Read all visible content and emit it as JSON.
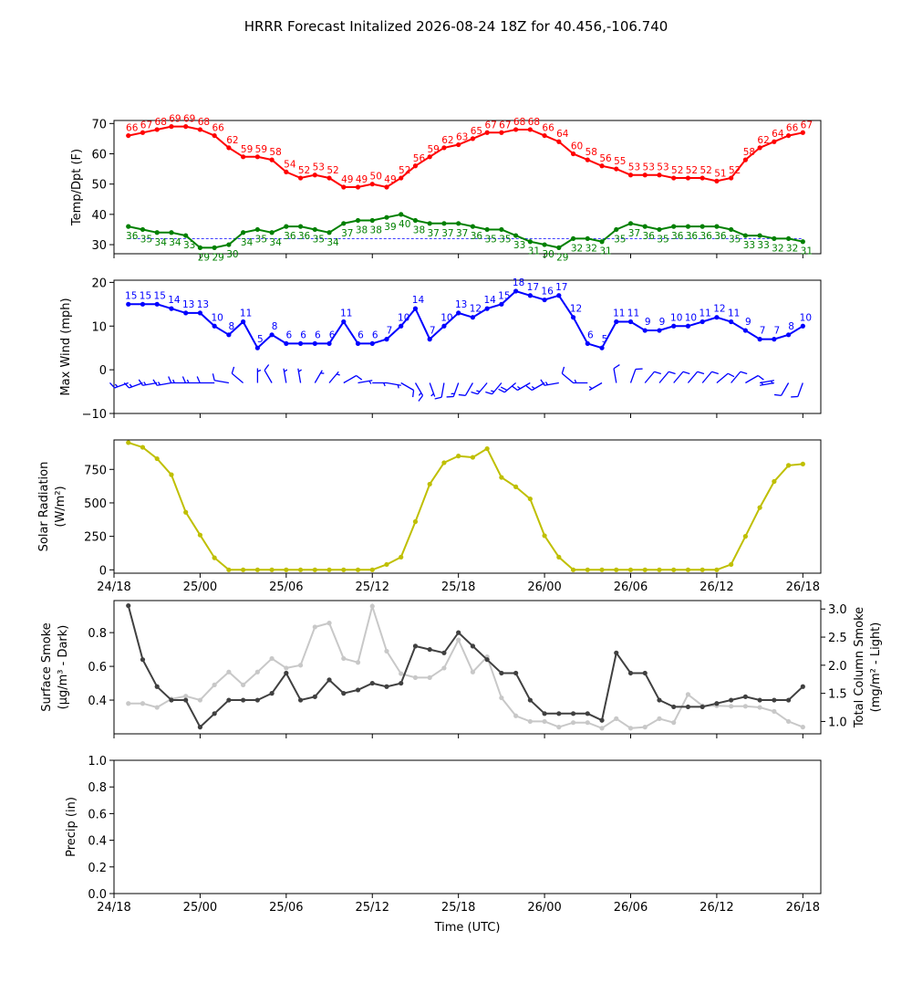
{
  "title": "HRRR Forecast Initalized 2026-08-24 18Z for 40.456,-106.740",
  "time_axis": {
    "label": "Time (UTC)",
    "ticks": [
      "24/18",
      "25/00",
      "25/06",
      "25/12",
      "25/18",
      "26/00",
      "26/06",
      "26/12",
      "26/18"
    ],
    "start_hour": 1,
    "end_hour": 48
  },
  "colors": {
    "temp": "#ff0000",
    "dewpoint": "#008000",
    "dewpoint_ref": "#0000ff",
    "wind": "#0000ff",
    "solar": "#bfbf00",
    "smoke_surface": "#404040",
    "smoke_column": "#c8c8c8"
  },
  "chart_data": [
    {
      "type": "line",
      "ylabel": "Temp/Dpt (F)",
      "ylim": [
        27,
        71
      ],
      "yticks": [
        "30",
        "40",
        "50",
        "60",
        "70"
      ],
      "dewpoint_ref": 32,
      "series": [
        {
          "key": "temp",
          "values": [
            66,
            67,
            68,
            69,
            69,
            68,
            66,
            62,
            59,
            59,
            58,
            54,
            52,
            53,
            52,
            49,
            49,
            50,
            49,
            52,
            56,
            59,
            62,
            63,
            65,
            67,
            67,
            68,
            68,
            66,
            64,
            60,
            58,
            56,
            55,
            53,
            53,
            53,
            52,
            52,
            52,
            51,
            52,
            58,
            62,
            64,
            66,
            67
          ],
          "labels": [
            "66",
            "67",
            "68",
            "69",
            "69",
            "68",
            "66",
            "62",
            "59",
            "59",
            "58",
            "54",
            "52",
            "53",
            "52",
            "49",
            "49",
            "50",
            "49",
            "52",
            "56",
            "59",
            "62",
            "63",
            "65",
            "67",
            "67",
            "68",
            "68",
            "66",
            "64",
            "60",
            "58",
            "56",
            "55",
            "53",
            "53",
            "53",
            "52",
            "52",
            "52",
            "51",
            "52",
            "58",
            "62",
            "64",
            "66",
            "67"
          ]
        },
        {
          "key": "dewpoint",
          "values": [
            36,
            35,
            34,
            34,
            33,
            29,
            29,
            30,
            34,
            35,
            34,
            36,
            36,
            35,
            34,
            37,
            38,
            38,
            39,
            40,
            38,
            37,
            37,
            37,
            36,
            35,
            35,
            33,
            31,
            30,
            29,
            32,
            32,
            31,
            35,
            37,
            36,
            35,
            36,
            36,
            36,
            36,
            35,
            33,
            33,
            32,
            32,
            31
          ],
          "labels": [
            "36",
            "35",
            "34",
            "34",
            "33",
            "29",
            "29",
            "30",
            "34",
            "35",
            "34",
            "36",
            "36",
            "35",
            "34",
            "37",
            "38",
            "38",
            "39",
            "40",
            "38",
            "37",
            "37",
            "37",
            "36",
            "35",
            "35",
            "33",
            "31",
            "30",
            "29",
            "32",
            "32",
            "31",
            "35",
            "37",
            "36",
            "35",
            "36",
            "36",
            "36",
            "36",
            "35",
            "33",
            "33",
            "32",
            "32",
            "31"
          ]
        }
      ]
    },
    {
      "type": "line",
      "ylabel": "Max Wind (mph)",
      "ylim": [
        -10,
        20.5
      ],
      "yticks": [
        "−10",
        "0",
        "10",
        "20"
      ],
      "series": [
        {
          "key": "wind",
          "values": [
            15,
            15,
            15,
            14,
            13,
            13,
            10,
            8,
            11,
            5,
            8,
            6,
            6,
            6,
            6,
            11,
            6,
            6,
            7,
            10,
            14,
            7,
            10,
            13,
            12,
            14,
            15,
            18,
            17,
            16,
            17,
            12,
            6,
            5,
            11,
            11,
            9,
            9,
            10,
            10,
            11,
            12,
            11,
            9,
            7,
            7,
            8,
            10
          ],
          "labels": [
            "15",
            "15",
            "15",
            "14",
            "13",
            "13",
            "10",
            "8",
            "11",
            "5",
            "8",
            "6",
            "6",
            "6",
            "6",
            "11",
            "6",
            "6",
            "7",
            "10",
            "14",
            "7",
            "10",
            "13",
            "12",
            "14",
            "15",
            "18",
            "17",
            "16",
            "17",
            "12",
            "6",
            "5",
            "11",
            "11",
            "9",
            "9",
            "10",
            "10",
            "11",
            "12",
            "11",
            "9",
            "7",
            "7",
            "8",
            "10"
          ]
        }
      ],
      "barbs": {
        "y_value": -3,
        "direction_deg": [
          250,
          250,
          260,
          260,
          270,
          270,
          270,
          280,
          310,
          0,
          330,
          350,
          350,
          30,
          40,
          60,
          80,
          90,
          100,
          120,
          150,
          160,
          190,
          200,
          210,
          220,
          220,
          230,
          240,
          240,
          260,
          310,
          270,
          240,
          350,
          20,
          40,
          40,
          40,
          40,
          40,
          50,
          40,
          60,
          80,
          260,
          210,
          200
        ]
      }
    },
    {
      "type": "line",
      "ylabel": "Solar Radiation",
      "ylabel_unit": "(W/m²)",
      "ylim": [
        -25,
        970
      ],
      "yticks": [
        "0",
        "250",
        "500",
        "750"
      ],
      "series": [
        {
          "key": "solar",
          "values": [
            950,
            915,
            830,
            710,
            430,
            260,
            90,
            0,
            0,
            0,
            0,
            0,
            0,
            0,
            0,
            0,
            0,
            0,
            40,
            95,
            360,
            640,
            800,
            850,
            840,
            905,
            690,
            620,
            530,
            255,
            95,
            0,
            0,
            0,
            0,
            0,
            0,
            0,
            0,
            0,
            0,
            0,
            40,
            250,
            465,
            660,
            780,
            790
          ]
        }
      ]
    },
    {
      "type": "line",
      "ylabel": "Surface Smoke",
      "ylabel_unit": "(μg/m³ - Dark)",
      "ylim": [
        0.2,
        0.99
      ],
      "yticks": [
        "0.4",
        "0.6",
        "0.8"
      ],
      "y2label": "Total Column Smoke",
      "y2label_unit": "(mg/m² - Light)",
      "y2lim": [
        0.78,
        3.15
      ],
      "y2ticks": [
        "1.0",
        "1.5",
        "2.0",
        "2.5",
        "3.0"
      ],
      "series": [
        {
          "key": "smoke_surface",
          "axis": "left",
          "values": [
            0.96,
            0.64,
            0.48,
            0.4,
            0.4,
            0.24,
            0.32,
            0.4,
            0.4,
            0.4,
            0.44,
            0.56,
            0.4,
            0.42,
            0.52,
            0.44,
            0.46,
            0.5,
            0.48,
            0.5,
            0.72,
            0.7,
            0.68,
            0.8,
            0.72,
            0.64,
            0.56,
            0.56,
            0.4,
            0.32,
            0.32,
            0.32,
            0.32,
            0.28,
            0.68,
            0.56,
            0.56,
            0.4,
            0.36,
            0.36,
            0.36,
            0.38,
            0.4,
            0.42,
            0.4,
            0.4,
            0.4,
            0.48
          ]
        },
        {
          "key": "smoke_column",
          "axis": "right",
          "values": [
            1.32,
            1.32,
            1.25,
            1.4,
            1.45,
            1.38,
            1.65,
            1.88,
            1.65,
            1.88,
            2.12,
            1.95,
            2.0,
            2.68,
            2.75,
            2.12,
            2.05,
            3.05,
            2.25,
            1.85,
            1.78,
            1.78,
            1.95,
            2.45,
            1.88,
            2.15,
            1.42,
            1.1,
            1.0,
            1.0,
            0.9,
            0.98,
            0.98,
            0.88,
            1.05,
            0.88,
            0.9,
            1.05,
            0.98,
            1.48,
            1.28,
            1.28,
            1.27,
            1.27,
            1.25,
            1.18,
            1.0,
            0.9
          ]
        }
      ]
    },
    {
      "type": "line",
      "ylabel": "Precip (in)",
      "ylim": [
        0,
        1
      ],
      "yticks": [
        "0.0",
        "0.2",
        "0.4",
        "0.6",
        "0.8",
        "1.0"
      ],
      "series": []
    }
  ]
}
